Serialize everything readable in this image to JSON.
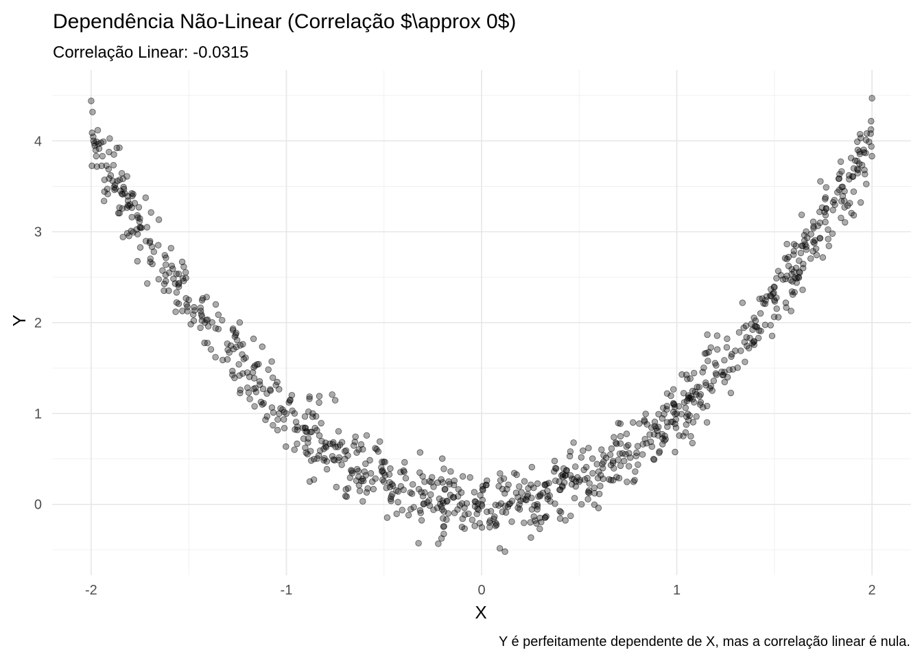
{
  "chart_data": {
    "type": "scatter",
    "title": "Dependência Não-Linear (Correlação $\\approx 0$)",
    "subtitle": "Correlação Linear: -0.0315",
    "xlabel": "X",
    "ylabel": "Y",
    "caption": "Y é perfeitamente dependente de X, mas a correlação linear é nula.",
    "xlim": [
      -2.2,
      2.2
    ],
    "ylim": [
      -0.78,
      4.78
    ],
    "x_ticks": [
      -2,
      -1,
      0,
      1,
      2
    ],
    "y_ticks": [
      0,
      1,
      2,
      3,
      4
    ],
    "grid": true,
    "legend": "none",
    "point_color": "#000000",
    "point_alpha": 0.33,
    "relationship": "y = x^2 + noise",
    "n_points": 1000,
    "x_range": [
      -2,
      2
    ],
    "noise_sd": 0.2,
    "points_sample": [
      [
        -2.0,
        4.44
      ],
      [
        -1.95,
        3.98
      ],
      [
        -1.9,
        3.62
      ],
      [
        -1.85,
        3.45
      ],
      [
        -1.8,
        3.3
      ],
      [
        -1.75,
        3.05
      ],
      [
        -1.7,
        2.88
      ],
      [
        -1.6,
        2.55
      ],
      [
        -1.5,
        2.25
      ],
      [
        -1.4,
        1.96
      ],
      [
        -1.3,
        1.7
      ],
      [
        -1.2,
        1.45
      ],
      [
        -1.1,
        1.22
      ],
      [
        -1.0,
        1.0
      ],
      [
        -0.9,
        0.8
      ],
      [
        -0.8,
        0.64
      ],
      [
        -0.7,
        0.5
      ],
      [
        -0.6,
        0.36
      ],
      [
        -0.5,
        0.25
      ],
      [
        -0.4,
        0.16
      ],
      [
        -0.3,
        0.09
      ],
      [
        -0.2,
        0.04
      ],
      [
        -0.1,
        0.01
      ],
      [
        0.0,
        0.0
      ],
      [
        0.1,
        0.01
      ],
      [
        0.12,
        -0.52
      ],
      [
        0.2,
        0.04
      ],
      [
        0.3,
        0.09
      ],
      [
        0.4,
        0.16
      ],
      [
        0.5,
        0.25
      ],
      [
        0.6,
        0.36
      ],
      [
        0.7,
        0.49
      ],
      [
        0.8,
        0.64
      ],
      [
        0.9,
        0.81
      ],
      [
        1.0,
        1.0
      ],
      [
        1.1,
        1.21
      ],
      [
        1.2,
        1.44
      ],
      [
        1.3,
        1.69
      ],
      [
        1.4,
        1.96
      ],
      [
        1.5,
        2.25
      ],
      [
        1.6,
        2.56
      ],
      [
        1.7,
        2.89
      ],
      [
        1.8,
        3.24
      ],
      [
        1.9,
        3.61
      ],
      [
        2.0,
        4.47
      ]
    ]
  }
}
